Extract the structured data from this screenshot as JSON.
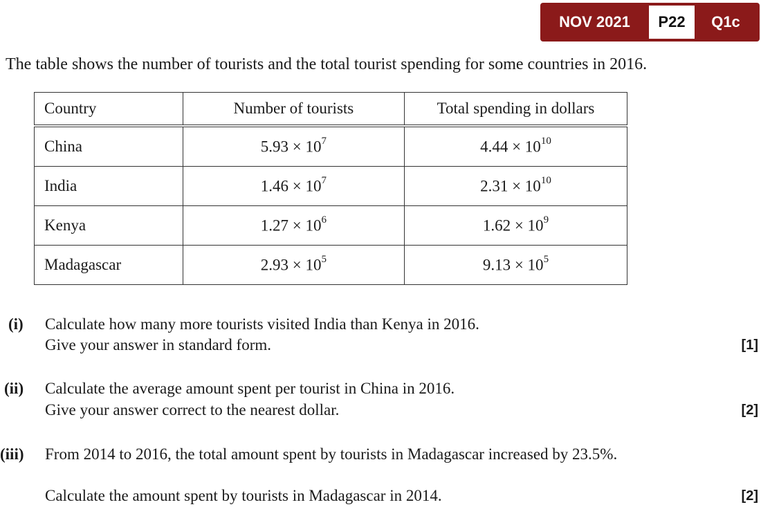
{
  "header": {
    "session": "NOV 2021",
    "paper": "P22",
    "question": "Q1c"
  },
  "intro": "The table shows the number of tourists and the total tourist spending for some countries in 2016.",
  "table": {
    "columns": [
      "Country",
      "Number of tourists",
      "Total spending in dollars"
    ],
    "rows": [
      [
        "China",
        {
          "base": "5.93 × 10",
          "exp": "7"
        },
        {
          "base": "4.44 × 10",
          "exp": "10"
        }
      ],
      [
        "India",
        {
          "base": "1.46 × 10",
          "exp": "7"
        },
        {
          "base": "2.31 × 10",
          "exp": "10"
        }
      ],
      [
        "Kenya",
        {
          "base": "1.27 × 10",
          "exp": "6"
        },
        {
          "base": "1.62 × 10",
          "exp": "9"
        }
      ],
      [
        "Madagascar",
        {
          "base": "2.93 × 10",
          "exp": "5"
        },
        {
          "base": "9.13 × 10",
          "exp": "5"
        }
      ]
    ]
  },
  "questions": [
    {
      "label": "(i)",
      "lines": [
        "Calculate how many more tourists visited India than Kenya in 2016.",
        "Give your answer in standard form."
      ],
      "marks": "[1]"
    },
    {
      "label": "(ii)",
      "lines": [
        "Calculate the average amount spent per tourist in China in 2016.",
        "Give your answer correct to the nearest dollar."
      ],
      "marks": "[2]"
    },
    {
      "label": "(iii)",
      "lines": [
        "From 2014 to 2016, the total amount spent by tourists in Madagascar increased by 23.5%.",
        "Calculate the amount spent by tourists in Madagascar in 2014."
      ],
      "marks": "[2]"
    }
  ]
}
